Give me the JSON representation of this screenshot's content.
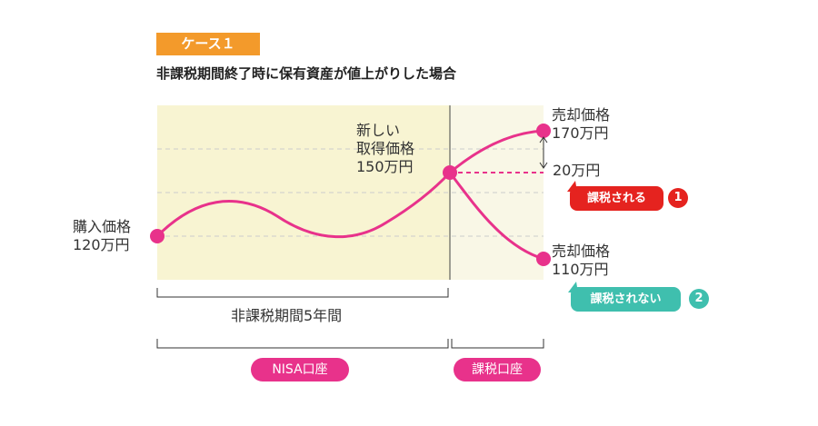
{
  "header": {
    "case_label": "ケース１",
    "subtitle": "非課税期間終了時に保有資産が値上がりした場合"
  },
  "points": {
    "purchase": {
      "line1": "購入価格",
      "line2": "120万円"
    },
    "new_cost": {
      "line1": "新しい",
      "line2": "取得価格",
      "line3": "150万円"
    },
    "sale_high": {
      "line1": "売却価格",
      "line2": "170万円"
    },
    "sale_low": {
      "line1": "売却価格",
      "line2": "110万円"
    }
  },
  "gain_label": "20万円",
  "callouts": {
    "taxed": {
      "text": "課税される",
      "number": "1"
    },
    "not_taxed": {
      "text": "課税されない",
      "number": "2"
    }
  },
  "periods": {
    "tax_free_period": "非課税期間5年間",
    "nisa_account": "NISA口座",
    "taxable_account": "課税口座"
  },
  "colors": {
    "curve": "#e8328b",
    "nisa_area": "#f8f4d2",
    "taxable_area": "#f9f7e6",
    "badge": "#f39a2b",
    "taxed": "#e5231f",
    "not_taxed": "#3fbfae"
  }
}
